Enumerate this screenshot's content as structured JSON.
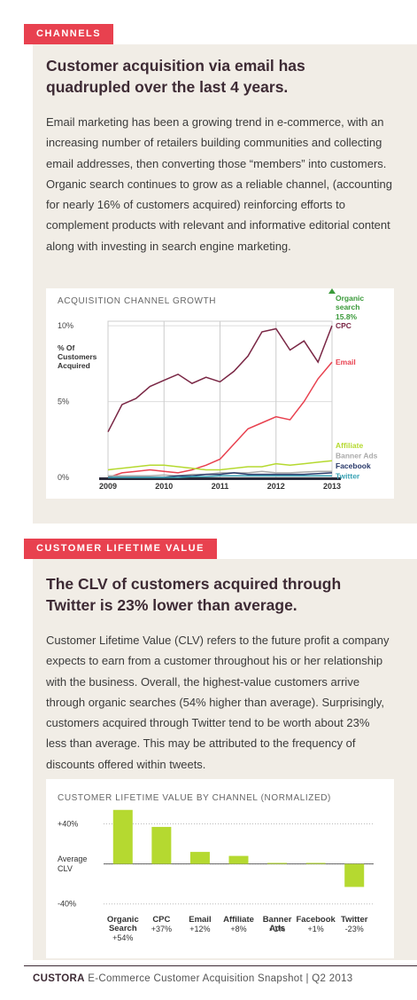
{
  "sections": [
    {
      "tag": "CHANNELS",
      "heading": "Customer acquisition via email has quadrupled over the last 4 years.",
      "body": "Email marketing has been a growing trend in e-commerce, with an increasing number of retailers building communities and collecting email addresses, then converting those “members” into customers. Organic search continues to grow as a reliable channel, (accounting for nearly 16% of customers acquired) reinforcing efforts to complement products with relevant and informative editorial content along with investing in search engine marketing."
    },
    {
      "tag": "CUSTOMER LIFETIME VALUE",
      "heading": "The CLV of customers acquired through Twitter is 23% lower than average.",
      "body": "Customer Lifetime Value (CLV) refers to the future profit a company expects to earn from a customer throughout his or her relationship with the business. Overall, the highest-value customers arrive through organic searches (54% higher than average). Surprisingly, customers acquired through Twitter tend to be worth about 23% less than average. This may be attributed to the frequency of discounts offered within tweets."
    }
  ],
  "chart_data": [
    {
      "type": "line",
      "title": "ACQUISITION CHANNEL GROWTH",
      "y_label": "% Of Customers Acquired",
      "x": [
        2009,
        2009.25,
        2009.5,
        2009.75,
        2010,
        2010.25,
        2010.5,
        2010.75,
        2011,
        2011.25,
        2011.5,
        2011.75,
        2012,
        2012.25,
        2012.5,
        2012.75,
        2013
      ],
      "xlim": [
        2009,
        2013
      ],
      "xticks": [
        2009,
        2010,
        2011,
        2012,
        2013
      ],
      "ylim": [
        0,
        10.3
      ],
      "yticks": [
        {
          "value": 0,
          "label": "0%"
        },
        {
          "value": 5,
          "label": "5%"
        },
        {
          "value": 10,
          "label": "10%"
        }
      ],
      "grid": true,
      "series": [
        {
          "name": "CPC",
          "color": "#7a2745",
          "values": [
            3.0,
            4.8,
            5.2,
            6.0,
            6.4,
            6.8,
            6.2,
            6.6,
            6.3,
            7.0,
            8.0,
            9.6,
            9.8,
            8.4,
            9.0,
            7.6,
            10.0
          ]
        },
        {
          "name": "Email",
          "color": "#e8414f",
          "values": [
            0,
            0.3,
            0.4,
            0.5,
            0.4,
            0.3,
            0.5,
            0.8,
            1.2,
            2.2,
            3.2,
            3.6,
            4.0,
            3.8,
            5.0,
            6.5,
            7.6
          ]
        },
        {
          "name": "Affiliate",
          "color": "#b5d930",
          "values": [
            0.5,
            0.6,
            0.7,
            0.8,
            0.8,
            0.7,
            0.6,
            0.5,
            0.5,
            0.6,
            0.7,
            0.7,
            0.9,
            0.8,
            0.9,
            1.0,
            1.1
          ]
        },
        {
          "name": "Banner Ads",
          "color": "#aaaaaa",
          "values": [
            0.1,
            0.1,
            0.1,
            0.1,
            0.15,
            0.1,
            0.2,
            0.2,
            0.3,
            0.3,
            0.3,
            0.4,
            0.3,
            0.3,
            0.35,
            0.4,
            0.4
          ]
        },
        {
          "name": "Facebook",
          "color": "#2a3a6b",
          "values": [
            0,
            0,
            0,
            0,
            0,
            0.1,
            0.1,
            0.2,
            0.2,
            0.3,
            0.2,
            0.2,
            0.2,
            0.2,
            0.2,
            0.25,
            0.3
          ]
        },
        {
          "name": "Twitter",
          "color": "#3aa3b5",
          "values": [
            0,
            0,
            0,
            0,
            0,
            0,
            0.05,
            0.05,
            0.1,
            0.1,
            0.1,
            0.1,
            0.1,
            0.1,
            0.1,
            0.1,
            0.1
          ]
        }
      ],
      "annotation": {
        "label": "Organic search",
        "value": 15.8,
        "value_label": "15.8%",
        "color": "#3a9a3a"
      }
    },
    {
      "type": "bar",
      "title": "CUSTOMER LIFETIME VALUE BY CHANNEL (NORMALIZED)",
      "categories": [
        "Organic Search",
        "CPC",
        "Email",
        "Affiliate",
        "Banner Ads",
        "Facebook",
        "Twitter"
      ],
      "values": [
        54,
        37,
        12,
        8,
        1,
        1,
        -23
      ],
      "value_labels": [
        "+54%",
        "+37%",
        "+12%",
        "+8%",
        "+1%",
        "+1%",
        "-23%"
      ],
      "color": "#b5d930",
      "ylim": [
        -50,
        60
      ],
      "yticks": [
        {
          "value": -40,
          "label": "-40%"
        },
        {
          "value": 0,
          "label": "Average CLV"
        },
        {
          "value": 40,
          "label": "+40%"
        }
      ],
      "grid": true
    }
  ],
  "footer": {
    "brand": "CUSTORA",
    "text": "E-Commerce Customer Acquisition Snapshot | Q2 2013"
  }
}
